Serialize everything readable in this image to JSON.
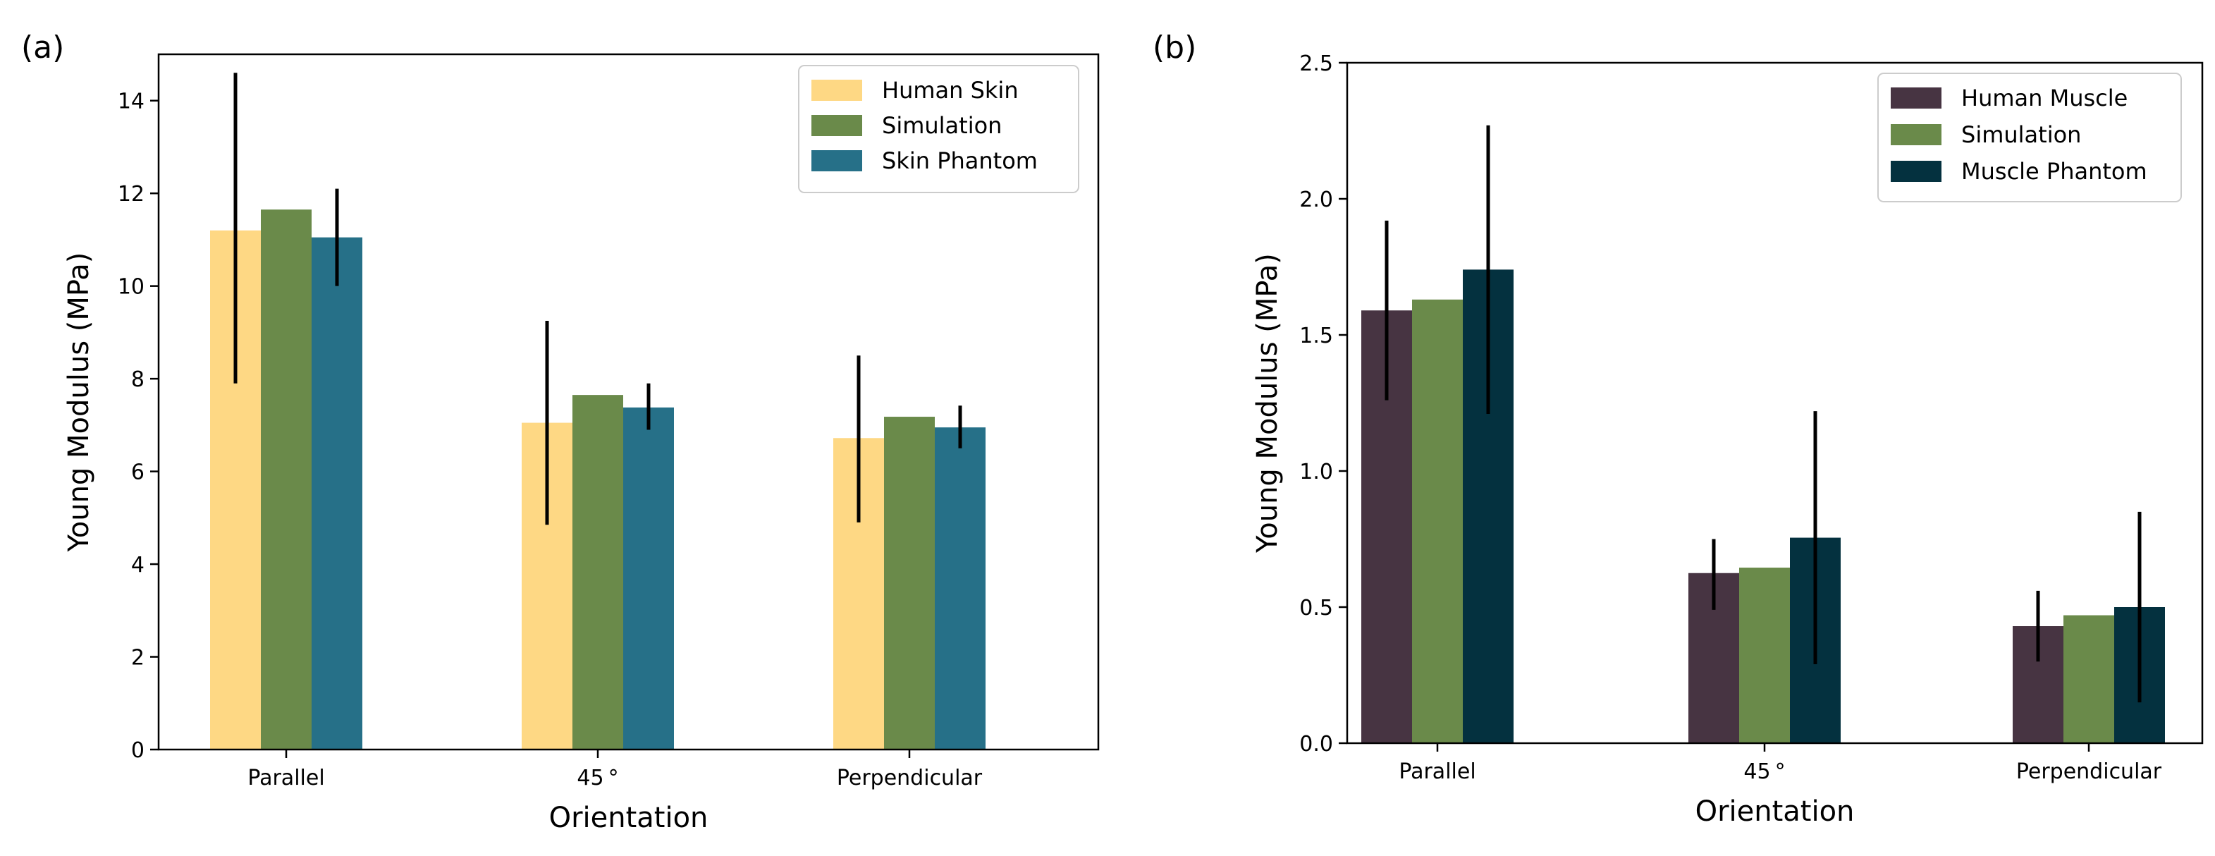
{
  "chart_data": [
    {
      "panel": "(a)",
      "type": "bar",
      "categories": [
        "Parallel",
        "45$^\\circ$",
        "Perpendicular"
      ],
      "category_labels": [
        "Parallel",
        "45 °",
        "Perpendicular"
      ],
      "xlabel": "Orientation",
      "ylabel": "Young Modulus (MPa)",
      "ylim": [
        0,
        15
      ],
      "yticks": [
        0,
        2,
        4,
        6,
        8,
        10,
        12,
        14
      ],
      "legend_position": "top-right",
      "series": [
        {
          "name": "Human Skin",
          "color": "#FED884",
          "values": [
            11.2,
            7.05,
            6.72
          ],
          "err_low": [
            7.9,
            4.85,
            4.9
          ],
          "err_high": [
            14.6,
            9.25,
            8.5
          ]
        },
        {
          "name": "Simulation",
          "color": "#6A8A4A",
          "values": [
            11.65,
            7.65,
            7.18
          ],
          "err_low": null,
          "err_high": null
        },
        {
          "name": "Skin Phantom",
          "color": "#267088",
          "values": [
            11.05,
            7.38,
            6.95
          ],
          "err_low": [
            10.0,
            6.9,
            6.5
          ],
          "err_high": [
            12.1,
            7.9,
            7.42
          ]
        }
      ]
    },
    {
      "panel": "(b)",
      "type": "bar",
      "categories": [
        "Parallel",
        "45$^\\circ$",
        "Perpendicular"
      ],
      "category_labels": [
        "Parallel",
        "45 °",
        "Perpendicular"
      ],
      "xlabel": "Orientation",
      "ylabel": "Young Modulus (MPa)",
      "ylim": [
        0,
        2.5
      ],
      "yticks": [
        0.0,
        0.5,
        1.0,
        1.5,
        2.0,
        2.5
      ],
      "ytick_labels": [
        "0.0",
        "0.5",
        "1.0",
        "1.5",
        "2.0",
        "2.5"
      ],
      "legend_position": "top-right",
      "series": [
        {
          "name": "Human Muscle",
          "color": "#473442",
          "values": [
            1.59,
            0.625,
            0.43
          ],
          "err_low": [
            1.26,
            0.49,
            0.3
          ],
          "err_high": [
            1.92,
            0.75,
            0.56
          ]
        },
        {
          "name": "Simulation",
          "color": "#6A8A4A",
          "values": [
            1.63,
            0.645,
            0.47
          ],
          "err_low": null,
          "err_high": null
        },
        {
          "name": "Muscle Phantom",
          "color": "#04313F",
          "values": [
            1.74,
            0.755,
            0.5
          ],
          "err_low": [
            1.21,
            0.29,
            0.15
          ],
          "err_high": [
            2.27,
            1.22,
            0.85
          ]
        }
      ]
    }
  ]
}
